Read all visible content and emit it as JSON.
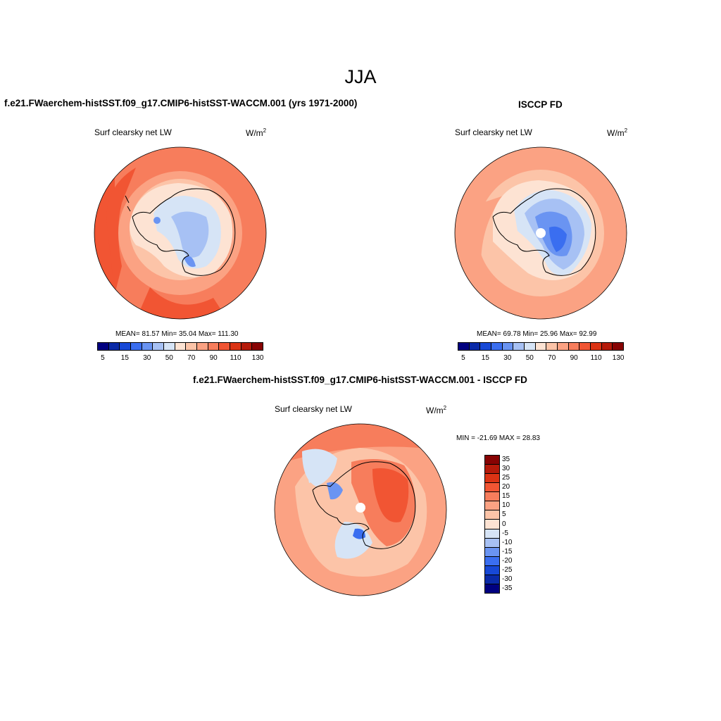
{
  "main_title": "JJA",
  "panels": [
    {
      "title": "f.e21.FWaerchem-histSST.f09_g17.CMIP6-histSST-WACCM.001 (yrs 1971-2000)",
      "variable": "Surf clearsky net LW",
      "units_base": "W/m",
      "units_exp": "2",
      "stats": "MEAN=  81.57  Min=  35.04  Max= 111.30"
    },
    {
      "title": "ISCCP FD",
      "variable": "Surf clearsky net LW",
      "units_base": "W/m",
      "units_exp": "2",
      "stats": "MEAN=  69.78  Min=  25.96  Max=  92.99"
    },
    {
      "title": "f.e21.FWaerchem-histSST.f09_g17.CMIP6-histSST-WACCM.001 - ISCCP FD",
      "variable": "Surf clearsky net LW",
      "units_base": "W/m",
      "units_exp": "2",
      "stats": "MIN = -21.69 MAX =  28.83"
    }
  ],
  "colorbar_abs": {
    "colors": [
      "#000080",
      "#0a2aa8",
      "#1748d6",
      "#3a6ef0",
      "#6a94f2",
      "#a7c1f4",
      "#d6e4f6",
      "#fde3d3",
      "#fcc4a8",
      "#fba283",
      "#f77d5c",
      "#f15533",
      "#db3314",
      "#b51a0a",
      "#870303"
    ],
    "tick_labels": [
      "5",
      "15",
      "30",
      "50",
      "70",
      "90",
      "110",
      "130"
    ]
  },
  "colorbar_diff": {
    "colors": [
      "#870303",
      "#b51a0a",
      "#db3314",
      "#f15533",
      "#f77d5c",
      "#fba283",
      "#fcc4a8",
      "#fde3d3",
      "#d6e4f6",
      "#a7c1f4",
      "#6a94f2",
      "#3a6ef0",
      "#1748d6",
      "#0a2aa8",
      "#000080"
    ],
    "tick_labels": [
      "35",
      "30",
      "25",
      "20",
      "15",
      "10",
      "5",
      "0",
      "-5",
      "-10",
      "-15",
      "-20",
      "-25",
      "-30",
      "-35"
    ]
  }
}
